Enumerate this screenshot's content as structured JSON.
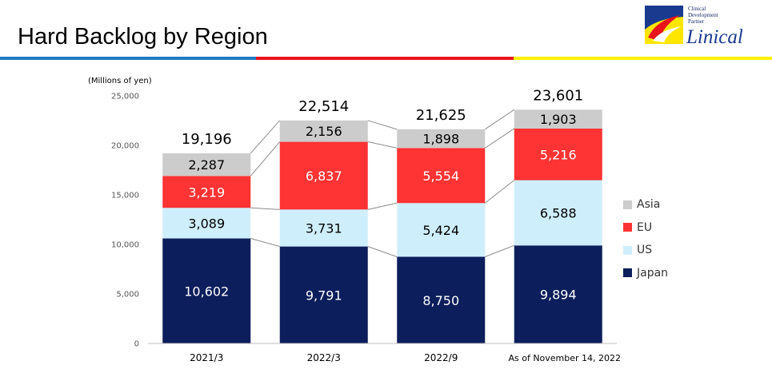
{
  "header": {
    "title": "Hard Backlog by Region"
  },
  "logo": {
    "tagline_line1": "Clinical",
    "tagline_line2": "Development",
    "tagline_line3": "Partner",
    "name": "Linical"
  },
  "chart_data": {
    "type": "bar",
    "stacked": true,
    "ylabel": "(Millions of yen)",
    "ylim": [
      0,
      25000
    ],
    "yticks": [
      "0",
      "5,000",
      "10,000",
      "15,000",
      "20,000",
      "25,000"
    ],
    "yticks_values": [
      0,
      5000,
      10000,
      15000,
      20000,
      25000
    ],
    "categories": [
      "2021/3",
      "2022/3",
      "2022/9",
      "As of November 14, 2022"
    ],
    "series": [
      {
        "name": "Japan",
        "color": "#0c1e5b",
        "values": [
          10602,
          9791,
          8750,
          9894
        ],
        "labels": [
          "10,602",
          "9,791",
          "8,750",
          "9,894"
        ]
      },
      {
        "name": "US",
        "color": "#cfeefc",
        "values": [
          3089,
          3731,
          5424,
          6588
        ],
        "labels": [
          "3,089",
          "3,731",
          "5,424",
          "6,588"
        ]
      },
      {
        "name": "EU",
        "color": "#fe3333",
        "values": [
          3219,
          6837,
          5554,
          5216
        ],
        "labels": [
          "3,219",
          "6,837",
          "5,554",
          "5,216"
        ]
      },
      {
        "name": "Asia",
        "color": "#cccccc",
        "values": [
          2287,
          2156,
          1898,
          1903
        ],
        "labels": [
          "2,287",
          "2,156",
          "1,898",
          "1,903"
        ]
      }
    ],
    "totals": [
      "19,196",
      "22,514",
      "21,625",
      "23,601"
    ],
    "legend_order": [
      "Asia",
      "EU",
      "US",
      "Japan"
    ],
    "legend_position": "right",
    "connector_lines": true,
    "grid": false
  }
}
